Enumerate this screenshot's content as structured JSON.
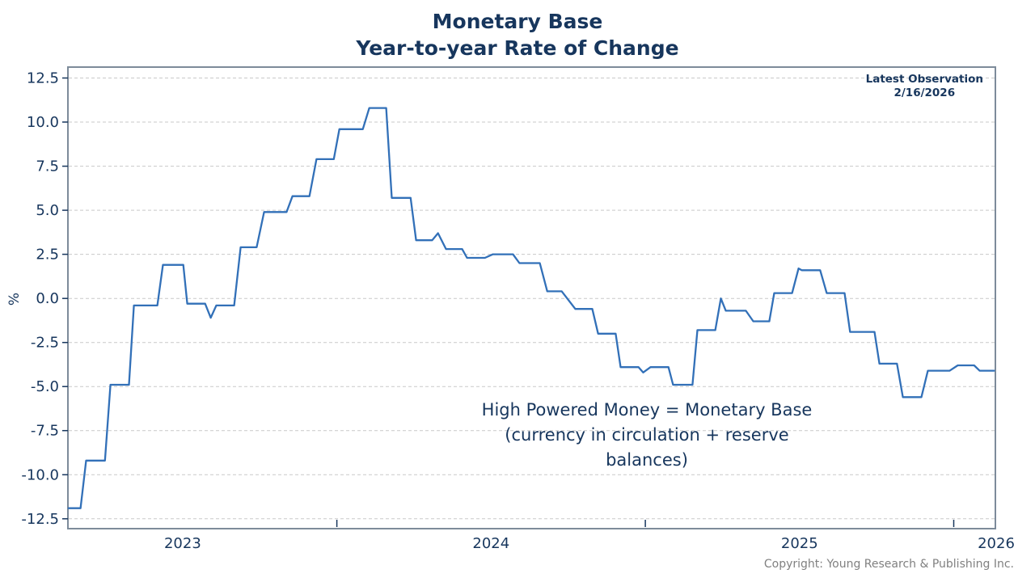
{
  "chart_data": {
    "type": "line",
    "title_line1": "Monetary Base",
    "title_line2": "Year-to-year Rate of Change",
    "ylabel": "%",
    "x_range": [
      2023.128,
      2026.135
    ],
    "y_range": [
      -13.06,
      13.12
    ],
    "grid": "dashed-horizontal",
    "legend": "none",
    "y_ticks": [
      {
        "v": -12.5,
        "label": "-12.5"
      },
      {
        "v": -10.0,
        "label": "-10.0"
      },
      {
        "v": -7.5,
        "label": "-7.5"
      },
      {
        "v": -5.0,
        "label": "-5.0"
      },
      {
        "v": -2.5,
        "label": "-2.5"
      },
      {
        "v": 0.0,
        "label": "0.0"
      },
      {
        "v": 2.5,
        "label": "2.5"
      },
      {
        "v": 5.0,
        "label": "5.0"
      },
      {
        "v": 7.5,
        "label": "7.5"
      },
      {
        "v": 10.0,
        "label": "10.0"
      },
      {
        "v": 12.5,
        "label": "12.5"
      }
    ],
    "x_boundary_ticks": [
      2024,
      2025,
      2026
    ],
    "x_labels": [
      {
        "t": 2023.5,
        "label": "2023",
        "clamp": false
      },
      {
        "t": 2024.5,
        "label": "2024",
        "clamp": false
      },
      {
        "t": 2025.5,
        "label": "2025",
        "clamp": false
      },
      {
        "t": 2026.13,
        "label": "2026",
        "clamp": true
      }
    ],
    "colors": {
      "line": "#3270b8",
      "title": "#17365d",
      "tick_label": "#17365d",
      "axis_border": "#7d8b9a",
      "grid": "#c9c9c9",
      "copyright": "#808080"
    },
    "points": [
      [
        2023.13,
        -11.9
      ],
      [
        2023.169,
        -11.9
      ],
      [
        2023.187,
        -9.2
      ],
      [
        2023.248,
        -9.2
      ],
      [
        2023.266,
        -4.9
      ],
      [
        2023.326,
        -4.9
      ],
      [
        2023.342,
        -0.4
      ],
      [
        2023.418,
        -0.4
      ],
      [
        2023.436,
        1.9
      ],
      [
        2023.502,
        1.9
      ],
      [
        2023.515,
        -0.3
      ],
      [
        2023.573,
        -0.3
      ],
      [
        2023.591,
        -1.1
      ],
      [
        2023.609,
        -0.4
      ],
      [
        2023.667,
        -0.4
      ],
      [
        2023.688,
        2.9
      ],
      [
        2023.74,
        2.9
      ],
      [
        2023.764,
        4.9
      ],
      [
        2023.837,
        4.9
      ],
      [
        2023.856,
        5.8
      ],
      [
        2023.911,
        5.8
      ],
      [
        2023.934,
        7.9
      ],
      [
        2023.99,
        7.9
      ],
      [
        2024.008,
        9.6
      ],
      [
        2024.084,
        9.6
      ],
      [
        2024.105,
        10.8
      ],
      [
        2024.16,
        10.8
      ],
      [
        2024.178,
        5.7
      ],
      [
        2024.239,
        5.7
      ],
      [
        2024.257,
        3.3
      ],
      [
        2024.309,
        3.3
      ],
      [
        2024.328,
        3.7
      ],
      [
        2024.354,
        2.8
      ],
      [
        2024.406,
        2.8
      ],
      [
        2024.422,
        2.3
      ],
      [
        2024.48,
        2.3
      ],
      [
        2024.506,
        2.5
      ],
      [
        2024.571,
        2.5
      ],
      [
        2024.592,
        2.0
      ],
      [
        2024.658,
        2.0
      ],
      [
        2024.682,
        0.4
      ],
      [
        2024.729,
        0.4
      ],
      [
        2024.773,
        -0.6
      ],
      [
        2024.828,
        -0.6
      ],
      [
        2024.847,
        -2.0
      ],
      [
        2024.904,
        -2.0
      ],
      [
        2024.92,
        -3.9
      ],
      [
        2024.978,
        -3.9
      ],
      [
        2024.993,
        -4.2
      ],
      [
        2025.017,
        -3.9
      ],
      [
        2025.075,
        -3.9
      ],
      [
        2025.09,
        -4.9
      ],
      [
        2025.153,
        -4.9
      ],
      [
        2025.169,
        -1.8
      ],
      [
        2025.227,
        -1.8
      ],
      [
        2025.245,
        0.0
      ],
      [
        2025.261,
        -0.7
      ],
      [
        2025.326,
        -0.7
      ],
      [
        2025.35,
        -1.3
      ],
      [
        2025.402,
        -1.3
      ],
      [
        2025.418,
        0.3
      ],
      [
        2025.476,
        0.3
      ],
      [
        2025.497,
        1.7
      ],
      [
        2025.507,
        1.6
      ],
      [
        2025.567,
        1.6
      ],
      [
        2025.588,
        0.3
      ],
      [
        2025.646,
        0.3
      ],
      [
        2025.664,
        -1.9
      ],
      [
        2025.743,
        -1.9
      ],
      [
        2025.759,
        -3.7
      ],
      [
        2025.816,
        -3.7
      ],
      [
        2025.835,
        -5.6
      ],
      [
        2025.895,
        -5.6
      ],
      [
        2025.916,
        -4.1
      ],
      [
        2025.987,
        -4.1
      ],
      [
        2026.013,
        -3.8
      ],
      [
        2026.066,
        -3.8
      ],
      [
        2026.084,
        -4.1
      ],
      [
        2026.131,
        -4.1
      ]
    ]
  },
  "annotations": {
    "latest_observation": {
      "line1": "Latest Observation",
      "line2": "2/16/2026"
    },
    "note": {
      "line1": "High Powered Money = Monetary Base",
      "line2": "(currency in circulation + reserve",
      "line3": "balances)"
    },
    "copyright": "Copyright: Young Research & Publishing Inc."
  }
}
